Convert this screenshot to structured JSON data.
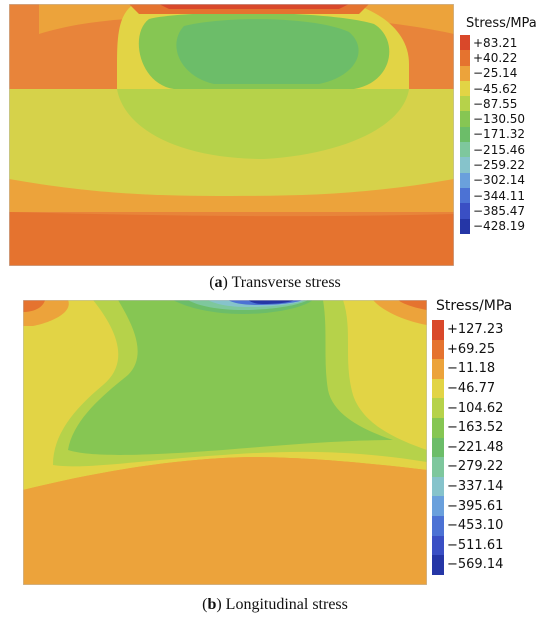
{
  "panels": [
    {
      "letter": "a",
      "caption": "Transverse stress",
      "legend_title": "Stress/MPa",
      "legend": [
        {
          "value": "+83.21",
          "color": "#d9482a"
        },
        {
          "value": "+40.22",
          "color": "#e5732f"
        },
        {
          "value": "−25.14",
          "color": "#eca33b"
        },
        {
          "value": "−45.62",
          "color": "#e2d445"
        },
        {
          "value": "−87.55",
          "color": "#b6d24a"
        },
        {
          "value": "−130.50",
          "color": "#86c653"
        },
        {
          "value": "−171.32",
          "color": "#6cbd69"
        },
        {
          "value": "−215.46",
          "color": "#7ec79d"
        },
        {
          "value": "−259.22",
          "color": "#86c3cb"
        },
        {
          "value": "−302.14",
          "color": "#6aa0dc"
        },
        {
          "value": "−344.11",
          "color": "#4c72d4"
        },
        {
          "value": "−385.47",
          "color": "#3a4fc4"
        },
        {
          "value": "−428.19",
          "color": "#2536a6"
        }
      ]
    },
    {
      "letter": "b",
      "caption": "Longitudinal stress",
      "legend_title": "Stress/MPa",
      "legend": [
        {
          "value": "+127.23",
          "color": "#d9482a"
        },
        {
          "value": "+69.25",
          "color": "#e5732f"
        },
        {
          "value": "−11.18",
          "color": "#eca33b"
        },
        {
          "value": "−46.77",
          "color": "#e2d445"
        },
        {
          "value": "−104.62",
          "color": "#b6d24a"
        },
        {
          "value": "−163.52",
          "color": "#86c653"
        },
        {
          "value": "−221.48",
          "color": "#6cbd69"
        },
        {
          "value": "−279.22",
          "color": "#7ec79d"
        },
        {
          "value": "−337.14",
          "color": "#86c3cb"
        },
        {
          "value": "−395.61",
          "color": "#6aa0dc"
        },
        {
          "value": "−453.10",
          "color": "#4c72d4"
        },
        {
          "value": "−511.61",
          "color": "#3a4fc4"
        },
        {
          "value": "−569.14",
          "color": "#2536a6"
        }
      ]
    }
  ]
}
